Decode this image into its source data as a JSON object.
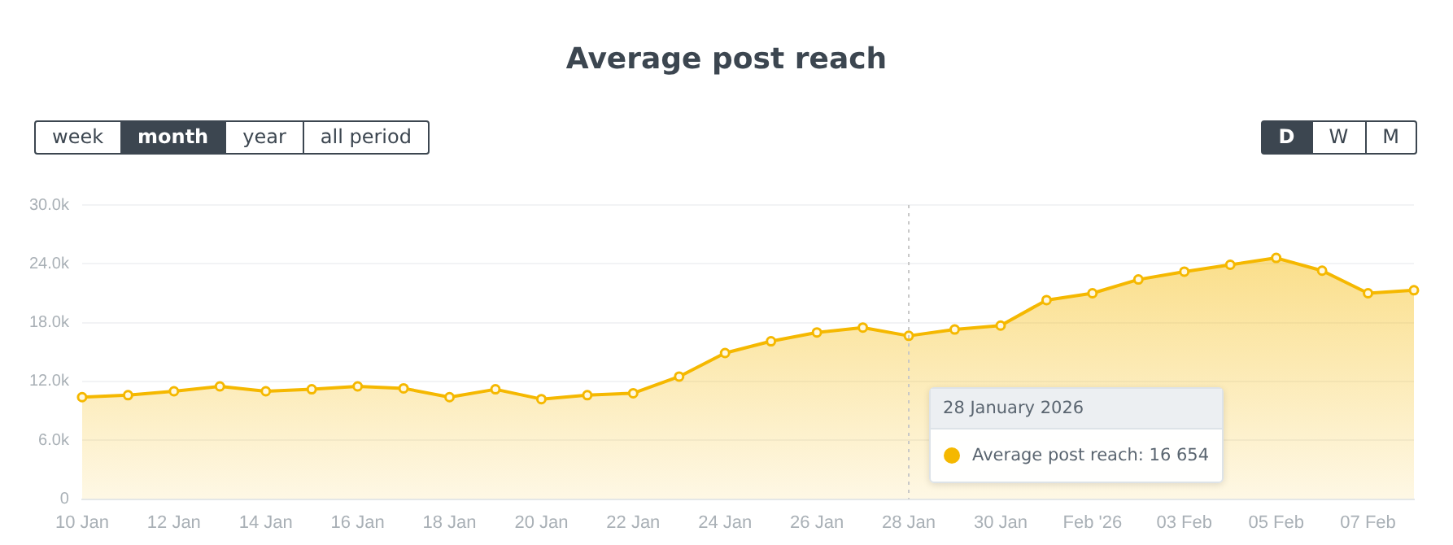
{
  "chart_data": {
    "type": "area",
    "title": "Average post reach",
    "categories": [
      "10 Jan",
      null,
      "12 Jan",
      null,
      "14 Jan",
      null,
      "16 Jan",
      null,
      "18 Jan",
      null,
      "20 Jan",
      null,
      "22 Jan",
      null,
      "24 Jan",
      null,
      "26 Jan",
      null,
      "28 Jan",
      null,
      "30 Jan",
      null,
      "Feb '26",
      null,
      "03 Feb",
      null,
      "05 Feb",
      null,
      "07 Feb",
      null
    ],
    "series": [
      {
        "color": "#f5b800",
        "values": [
          10400,
          10600,
          11000,
          11500,
          11000,
          11200,
          11500,
          11300,
          10400,
          11200,
          10200,
          10600,
          10800,
          12500,
          14900,
          16100,
          17000,
          17500,
          16654,
          17300,
          17700,
          20300,
          21000,
          22400,
          23200,
          23900,
          24600,
          23300,
          21000,
          21300
        ]
      }
    ],
    "ylim": [
      0,
      30000
    ],
    "yticks": [
      0,
      {
        "value": 6000,
        "label": "6.0k"
      },
      {
        "value": 12000,
        "label": "12.0k"
      },
      {
        "value": 18000,
        "label": "18.0k"
      },
      {
        "value": 24000,
        "label": "24.0k"
      },
      {
        "value": 30000,
        "label": "30.0k"
      }
    ],
    "grid": "y",
    "legend": false,
    "marker": "circle",
    "ref_lines": [
      {
        "axis": "x",
        "value": "28 Jan",
        "color": "#c8c8c8",
        "line_style": "dotted"
      }
    ],
    "annotations": [
      "week",
      "month",
      "year",
      "all period",
      "D",
      "W",
      "M",
      "28 January 2026",
      "Average post reach:  16 654"
    ]
  }
}
